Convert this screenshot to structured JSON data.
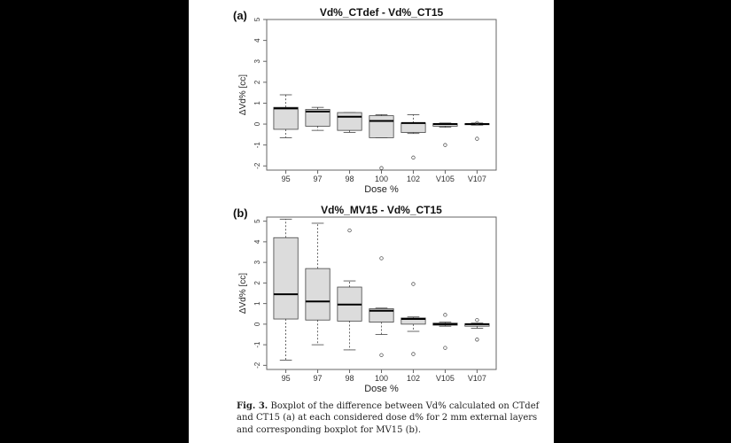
{
  "chart_data": [
    {
      "type": "box",
      "panel": "(a)",
      "title": "Vd%_CTdef - Vd%_CT15",
      "xlabel": "Dose %",
      "ylabel": "ΔVd% [cc]",
      "ylim": [
        -2.2,
        5
      ],
      "yticks": [
        -2,
        -1,
        0,
        1,
        2,
        3,
        4,
        5
      ],
      "categories": [
        "95",
        "97",
        "98",
        "100",
        "102",
        "V105",
        "V107"
      ],
      "boxes": [
        {
          "q1": -0.25,
          "median": 0.75,
          "q3": 0.8,
          "whisker_low": -0.65,
          "whisker_high": 1.4,
          "outliers": []
        },
        {
          "q1": -0.1,
          "median": 0.6,
          "q3": 0.7,
          "whisker_low": -0.3,
          "whisker_high": 0.8,
          "outliers": []
        },
        {
          "q1": -0.3,
          "median": 0.35,
          "q3": 0.55,
          "whisker_low": -0.4,
          "whisker_high": 0.55,
          "outliers": []
        },
        {
          "q1": -0.65,
          "median": 0.15,
          "q3": 0.4,
          "whisker_low": -0.65,
          "whisker_high": 0.45,
          "outliers": [
            -2.1
          ]
        },
        {
          "q1": -0.4,
          "median": 0.05,
          "q3": 0.05,
          "whisker_low": -0.45,
          "whisker_high": 0.45,
          "outliers": [
            -1.6
          ]
        },
        {
          "q1": -0.1,
          "median": 0.0,
          "q3": 0.02,
          "whisker_low": -0.15,
          "whisker_high": 0.05,
          "outliers": [
            -1.0
          ]
        },
        {
          "q1": -0.03,
          "median": 0.0,
          "q3": 0.02,
          "whisker_low": -0.05,
          "whisker_high": 0.05,
          "outliers": [
            0.05,
            -0.7
          ]
        }
      ]
    },
    {
      "type": "box",
      "panel": "(b)",
      "title": "Vd%_MV15 - Vd%_CT15",
      "xlabel": "Dose %",
      "ylabel": "ΔVd% [cc]",
      "ylim": [
        -2.2,
        5.2
      ],
      "yticks": [
        -2,
        -1,
        0,
        1,
        2,
        3,
        4,
        5
      ],
      "categories": [
        "95",
        "97",
        "98",
        "100",
        "102",
        "V105",
        "V107"
      ],
      "boxes": [
        {
          "q1": 0.25,
          "median": 1.45,
          "q3": 4.2,
          "whisker_low": -1.75,
          "whisker_high": 5.1,
          "outliers": []
        },
        {
          "q1": 0.2,
          "median": 1.1,
          "q3": 2.7,
          "whisker_low": -1.0,
          "whisker_high": 4.9,
          "outliers": []
        },
        {
          "q1": 0.15,
          "median": 0.95,
          "q3": 1.8,
          "whisker_low": -1.25,
          "whisker_high": 2.1,
          "outliers": [
            4.55
          ]
        },
        {
          "q1": 0.1,
          "median": 0.65,
          "q3": 0.75,
          "whisker_low": -0.5,
          "whisker_high": 0.78,
          "outliers": [
            3.2,
            -1.5
          ]
        },
        {
          "q1": 0.0,
          "median": 0.25,
          "q3": 0.3,
          "whisker_low": -0.35,
          "whisker_high": 0.35,
          "outliers": [
            1.95,
            -1.45
          ]
        },
        {
          "q1": -0.05,
          "median": 0.0,
          "q3": 0.05,
          "whisker_low": -0.1,
          "whisker_high": 0.1,
          "outliers": [
            0.45,
            -1.15
          ]
        },
        {
          "q1": -0.1,
          "median": 0.0,
          "q3": 0.02,
          "whisker_low": -0.2,
          "whisker_high": 0.05,
          "outliers": [
            0.2,
            -0.75
          ]
        }
      ]
    }
  ],
  "caption": {
    "label": "Fig. 3.",
    "text": " Boxplot of the difference between Vd% calculated on CTdef and CT15 (a) at each considered dose d% for 2 mm external layers and corresponding boxplot for MV15 (b)."
  },
  "colors": {
    "box_fill": "#dcdcdc",
    "stroke": "#444444",
    "median": "#000000"
  }
}
